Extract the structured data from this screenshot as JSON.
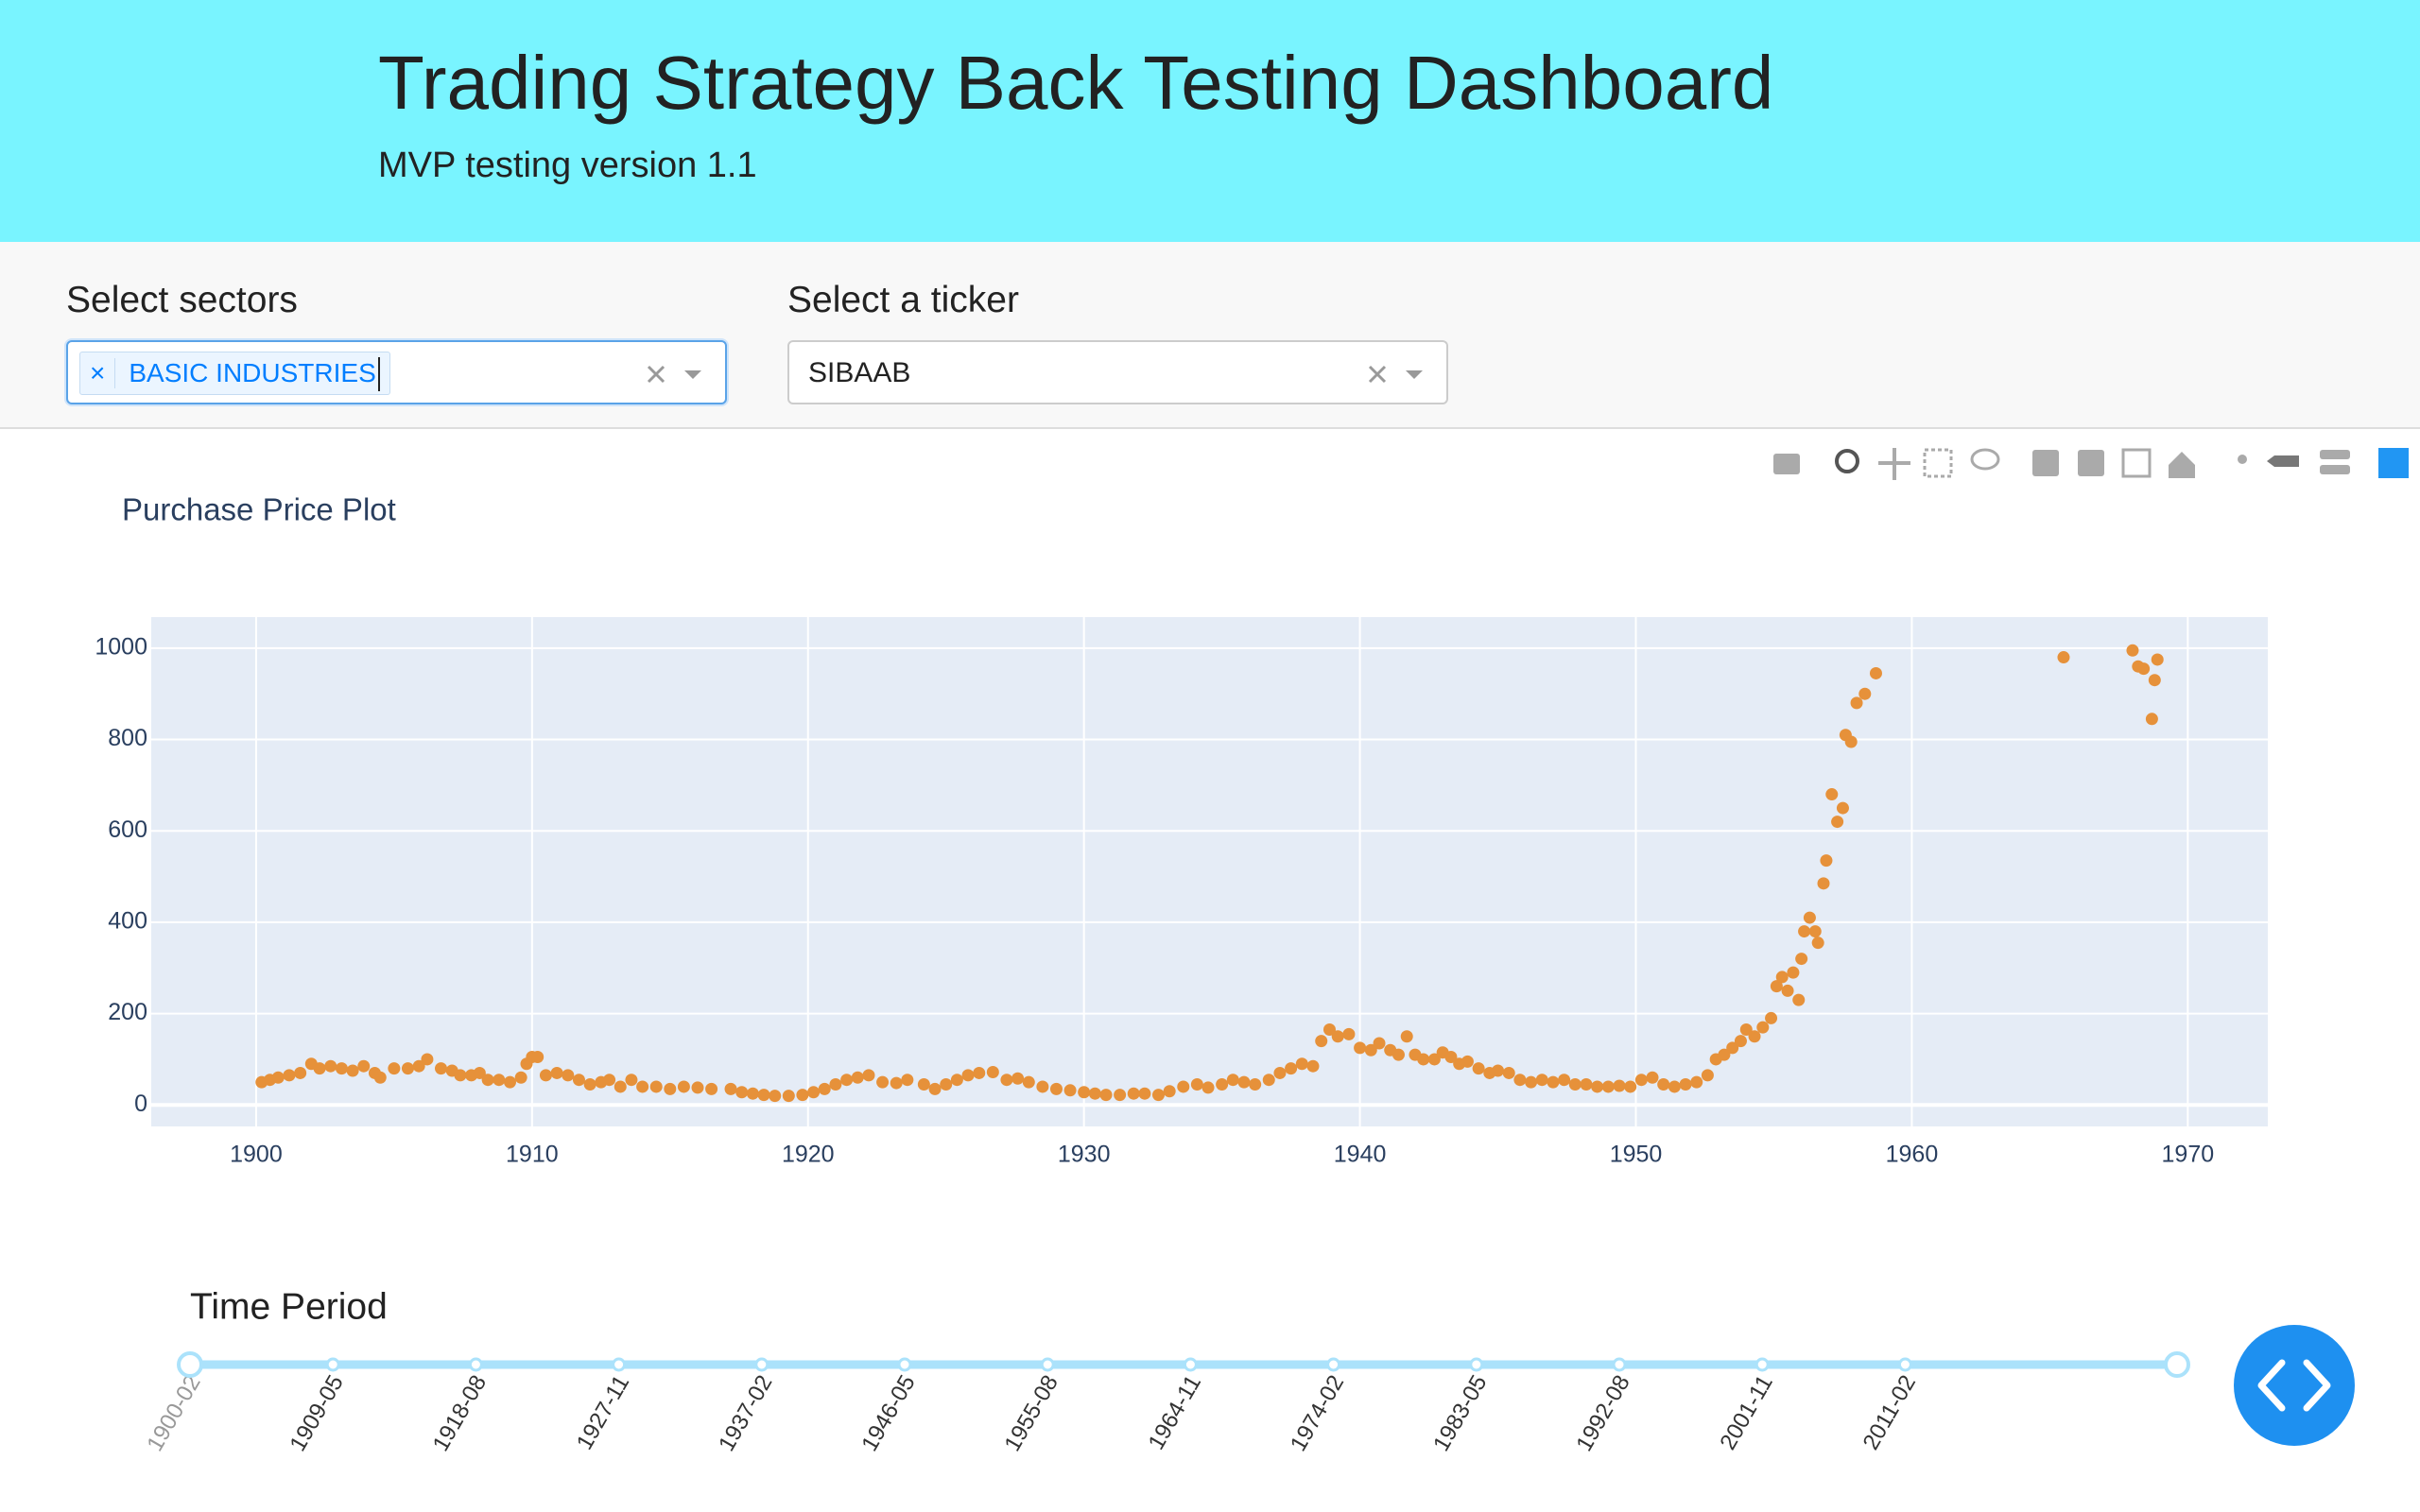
{
  "header": {
    "title": "Trading Strategy Back Testing Dashboard",
    "subtitle": "MVP testing version 1.1"
  },
  "controls": [
    {
      "label": "Select sectors",
      "chips": [
        "BASIC INDUSTRIES"
      ]
    },
    {
      "label": "Select a ticker",
      "value": "SIBAAB"
    }
  ],
  "chart_data": {
    "type": "scatter",
    "title": "Purchase Price Plot",
    "color": "#e6913a",
    "grid": true,
    "xlim": [
      1896.2,
      1972.9
    ],
    "xticks": [
      1900,
      1910,
      1920,
      1930,
      1940,
      1950,
      1960,
      1970
    ],
    "ylim": [
      -47,
      1068
    ],
    "yticks": [
      0,
      200,
      400,
      600,
      800,
      1000
    ],
    "x": [
      1900.2,
      1900.5,
      1900.8,
      1901.2,
      1901.6,
      1902,
      1902.3,
      1902.7,
      1903.1,
      1903.5,
      1903.9,
      1904.3,
      1904.5,
      1905,
      1905.5,
      1905.9,
      1906.2,
      1906.7,
      1907.1,
      1907.4,
      1907.8,
      1908.1,
      1908.4,
      1908.8,
      1909.2,
      1909.6,
      1909.8,
      1910,
      1910.2,
      1910.5,
      1910.9,
      1911.3,
      1911.7,
      1912.1,
      1912.5,
      1912.8,
      1913.2,
      1913.6,
      1914,
      1914.5,
      1915,
      1915.5,
      1916,
      1916.5,
      1917.2,
      1917.6,
      1918,
      1918.4,
      1918.8,
      1919.3,
      1919.8,
      1920.2,
      1920.6,
      1921,
      1921.4,
      1921.8,
      1922.2,
      1922.7,
      1923.2,
      1923.6,
      1924.2,
      1924.6,
      1925,
      1925.4,
      1925.8,
      1926.2,
      1926.7,
      1927.2,
      1927.6,
      1928,
      1928.5,
      1929,
      1929.5,
      1930,
      1930.4,
      1930.8,
      1931.3,
      1931.8,
      1932.2,
      1932.7,
      1933.1,
      1933.6,
      1934.1,
      1934.5,
      1935,
      1935.4,
      1935.8,
      1936.2,
      1936.7,
      1937.1,
      1937.5,
      1937.9,
      1938.3,
      1938.6,
      1938.9,
      1939.2,
      1939.6,
      1940,
      1940.4,
      1940.7,
      1941.1,
      1941.4,
      1941.7,
      1942,
      1942.3,
      1942.7,
      1943,
      1943.3,
      1943.6,
      1943.9,
      1944.3,
      1944.7,
      1945,
      1945.4,
      1945.8,
      1946.2,
      1946.6,
      1947,
      1947.4,
      1947.8,
      1948.2,
      1948.6,
      1949,
      1949.4,
      1949.8,
      1950.2,
      1950.6,
      1951,
      1951.4,
      1951.8,
      1952.2,
      1952.6,
      1952.9,
      1953.2,
      1953.5,
      1953.8,
      1954,
      1954.3,
      1954.6,
      1954.9,
      1955.1,
      1955.3,
      1955.5,
      1955.7,
      1955.9,
      1956,
      1956.1,
      1956.3,
      1956.5,
      1956.6,
      1956.8,
      1956.9,
      1957.1,
      1957.3,
      1957.5,
      1957.6,
      1957.8,
      1958,
      1958.3,
      1958.7,
      1965.5,
      1968,
      1968.2,
      1968.4,
      1968.7,
      1968.8,
      1968.9
    ],
    "values": [
      50,
      55,
      60,
      65,
      70,
      90,
      80,
      85,
      80,
      75,
      85,
      70,
      60,
      80,
      80,
      85,
      100,
      80,
      75,
      65,
      65,
      70,
      55,
      55,
      50,
      60,
      90,
      105,
      105,
      65,
      70,
      65,
      55,
      45,
      50,
      55,
      40,
      55,
      40,
      40,
      35,
      40,
      38,
      35,
      35,
      28,
      25,
      22,
      20,
      20,
      22,
      28,
      35,
      45,
      55,
      60,
      65,
      50,
      48,
      55,
      45,
      35,
      45,
      55,
      65,
      70,
      72,
      55,
      58,
      50,
      40,
      35,
      32,
      28,
      25,
      22,
      22,
      25,
      25,
      22,
      30,
      40,
      45,
      38,
      45,
      55,
      50,
      45,
      55,
      70,
      80,
      90,
      85,
      140,
      165,
      150,
      155,
      125,
      120,
      135,
      120,
      110,
      150,
      110,
      100,
      100,
      115,
      105,
      90,
      95,
      80,
      70,
      75,
      70,
      55,
      50,
      55,
      50,
      55,
      45,
      45,
      40,
      40,
      42,
      40,
      55,
      60,
      45,
      40,
      45,
      50,
      65,
      100,
      110,
      125,
      140,
      165,
      150,
      170,
      190,
      260,
      280,
      250,
      290,
      230,
      320,
      380,
      410,
      380,
      355,
      485,
      535,
      680,
      620,
      650,
      810,
      795,
      880,
      900,
      945,
      980,
      995,
      960,
      955,
      845,
      930,
      975
    ]
  },
  "slider": {
    "label": "Time Period",
    "marks": [
      "1900-02",
      "1909-05",
      "1918-08",
      "1927-11",
      "1937-02",
      "1946-05",
      "1955-08",
      "1964-11",
      "1974-02",
      "1983-05",
      "1992-08",
      "2001-11",
      "2011-02"
    ]
  }
}
